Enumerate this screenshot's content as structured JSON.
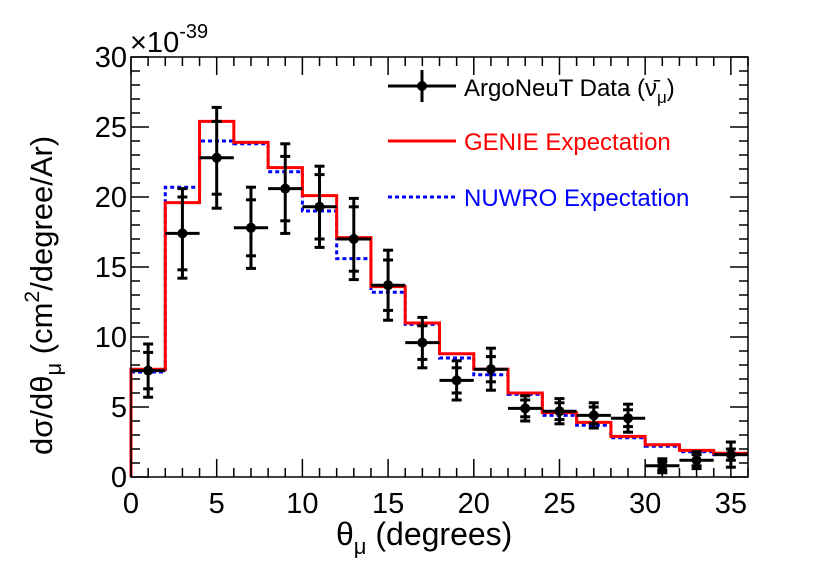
{
  "chart_data": {
    "type": "histogram",
    "exponent_label": "×10",
    "exponent_power": "-39",
    "xlabel": {
      "main": "θ",
      "sub": "μ",
      "rest": " (degrees)"
    },
    "ylabel": {
      "part1": "dσ/dθ",
      "sub": "μ",
      "part2": " (cm",
      "sup": "2",
      "part3": "/degree/Ar)"
    },
    "xlim": [
      0,
      36
    ],
    "ylim": [
      0,
      30
    ],
    "x_ticks": [
      0,
      5,
      10,
      15,
      20,
      25,
      30,
      35
    ],
    "x_tick_labels": [
      "0",
      "5",
      "10",
      "15",
      "20",
      "25",
      "30",
      "35"
    ],
    "y_ticks": [
      0,
      5,
      10,
      15,
      20,
      25,
      30
    ],
    "y_tick_labels": [
      "0",
      "5",
      "10",
      "15",
      "20",
      "25",
      "30"
    ],
    "bin_edges": [
      0,
      2,
      4,
      6,
      8,
      10,
      12,
      14,
      16,
      18,
      20,
      22,
      24,
      26,
      28,
      30,
      32,
      34,
      36
    ],
    "legend_placement": "top-right",
    "series": [
      {
        "name": "GENIE Expectation",
        "kind": "step",
        "color": "#ff0000",
        "dash": "solid",
        "values": [
          7.7,
          19.6,
          25.4,
          23.9,
          22.1,
          20.1,
          17.1,
          13.6,
          11.0,
          8.8,
          7.7,
          6.0,
          4.6,
          3.9,
          2.9,
          2.3,
          1.9,
          1.7
        ]
      },
      {
        "name": "NUWRO Expectation",
        "kind": "step",
        "color": "#0000ff",
        "dash": "dotted",
        "values": [
          7.5,
          20.7,
          24.0,
          23.8,
          21.8,
          19.0,
          15.6,
          13.2,
          10.9,
          8.5,
          7.3,
          5.9,
          4.4,
          3.7,
          2.8,
          2.2,
          1.8,
          1.6
        ]
      },
      {
        "name_main": "ArgoNeuT Data (",
        "name_symbol": "ν̄",
        "name_sub": "μ",
        "name_close": ")",
        "kind": "points",
        "color": "#000000",
        "x": [
          1,
          3,
          5,
          7,
          9,
          11,
          13,
          15,
          17,
          19,
          21,
          23,
          25,
          27,
          29,
          31,
          33,
          35
        ],
        "xerr": [
          1,
          1,
          1,
          1,
          1,
          1,
          1,
          1,
          1,
          1,
          1,
          1,
          1,
          1,
          1,
          1,
          1,
          1
        ],
        "y": [
          7.6,
          17.4,
          22.8,
          17.8,
          20.6,
          19.3,
          17.0,
          13.7,
          9.6,
          6.9,
          7.7,
          4.9,
          4.7,
          4.4,
          4.2,
          0.8,
          1.2,
          1.6
        ],
        "yerr_stat": [
          1.3,
          2.6,
          2.6,
          2.0,
          2.3,
          2.3,
          2.3,
          1.8,
          1.2,
          0.9,
          0.9,
          0.6,
          0.6,
          0.6,
          0.6,
          0.3,
          0.4,
          0.4
        ],
        "yerr_total": [
          1.9,
          3.2,
          3.6,
          2.9,
          3.2,
          2.9,
          2.9,
          2.5,
          1.8,
          1.4,
          1.5,
          0.9,
          0.9,
          0.9,
          1.0,
          0.5,
          0.6,
          0.9
        ]
      }
    ]
  }
}
